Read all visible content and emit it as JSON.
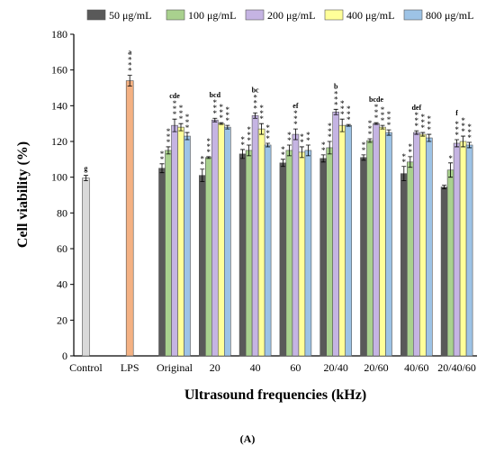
{
  "chart_data": {
    "type": "bar",
    "xlabel": "Ultrasound frequencies (kHz)",
    "ylabel": "Cell viability (%)",
    "caption": "(A)",
    "categories": [
      "Control",
      "LPS",
      "Original",
      "20",
      "40",
      "60",
      "20/40",
      "20/60",
      "40/60",
      "20/40/60"
    ],
    "ylim": [
      0,
      180
    ],
    "yticks": [
      0,
      20,
      40,
      60,
      80,
      100,
      120,
      140,
      160,
      180
    ],
    "legend": "top",
    "single_bars": {
      "values": [
        99.5,
        154,
        null,
        null,
        null,
        null,
        null,
        null,
        null,
        null
      ],
      "errors": [
        1.5,
        3,
        null,
        null,
        null,
        null,
        null,
        null,
        null,
        null
      ],
      "colors": [
        "#d9d9d9",
        "#f4b183",
        null,
        null,
        null,
        null,
        null,
        null,
        null,
        null
      ],
      "stars": [
        "",
        "***",
        null,
        null,
        null,
        null,
        null,
        null,
        null,
        null
      ]
    },
    "letters": [
      "g",
      "a",
      "cde",
      "bcd",
      "bc",
      "ef",
      "b",
      "bcde",
      "def",
      "f"
    ],
    "series": [
      {
        "name": "50  μg/mL",
        "color": "#595959",
        "values": [
          null,
          null,
          105,
          101,
          113,
          108,
          110.5,
          111,
          102,
          94.5
        ],
        "errors": [
          null,
          null,
          2.5,
          3.5,
          2.5,
          2,
          2,
          1.5,
          4,
          1
        ],
        "stars": [
          null,
          null,
          "**",
          "**",
          "**",
          "**",
          "**",
          "**",
          "**",
          ""
        ]
      },
      {
        "name": "100 μg/mL",
        "color": "#a9d18e",
        "values": [
          null,
          null,
          115,
          111,
          115,
          115,
          116.5,
          120.5,
          108.5,
          104
        ],
        "errors": [
          null,
          null,
          2,
          0.5,
          3,
          3,
          3.5,
          1,
          3,
          4
        ],
        "stars": [
          null,
          null,
          "***",
          "***",
          "***",
          "**",
          "***",
          "***",
          "**",
          "*"
        ]
      },
      {
        "name": "200 μg/mL",
        "color": "#c5b4e3",
        "values": [
          null,
          null,
          129,
          132,
          134.5,
          124,
          136.5,
          130,
          125,
          119
        ],
        "errors": [
          null,
          null,
          3.5,
          1,
          1.5,
          3,
          1.5,
          0.5,
          1,
          2
        ],
        "stars": [
          null,
          null,
          "***",
          "***",
          "***",
          "***",
          "***",
          "***",
          "***",
          "***"
        ]
      },
      {
        "name": "400 μg/mL",
        "color": "#ffff99",
        "values": [
          null,
          null,
          128,
          130,
          127,
          114,
          129,
          128,
          124,
          120
        ],
        "errors": [
          null,
          null,
          2,
          0.5,
          3,
          3,
          3.5,
          1,
          1,
          3
        ],
        "stars": [
          null,
          null,
          "***",
          "***",
          "***",
          "**",
          "***",
          "***",
          "***",
          "***"
        ]
      },
      {
        "name": "800 μg/mL",
        "color": "#9dc3e6",
        "values": [
          null,
          null,
          123,
          128,
          118,
          115,
          129,
          125,
          122,
          118
        ],
        "errors": [
          null,
          null,
          2,
          1,
          1,
          3,
          0.5,
          1.5,
          2,
          1.5
        ],
        "stars": [
          null,
          null,
          "***",
          "***",
          "***",
          "**",
          "***",
          "***",
          "***",
          "***"
        ]
      }
    ]
  }
}
